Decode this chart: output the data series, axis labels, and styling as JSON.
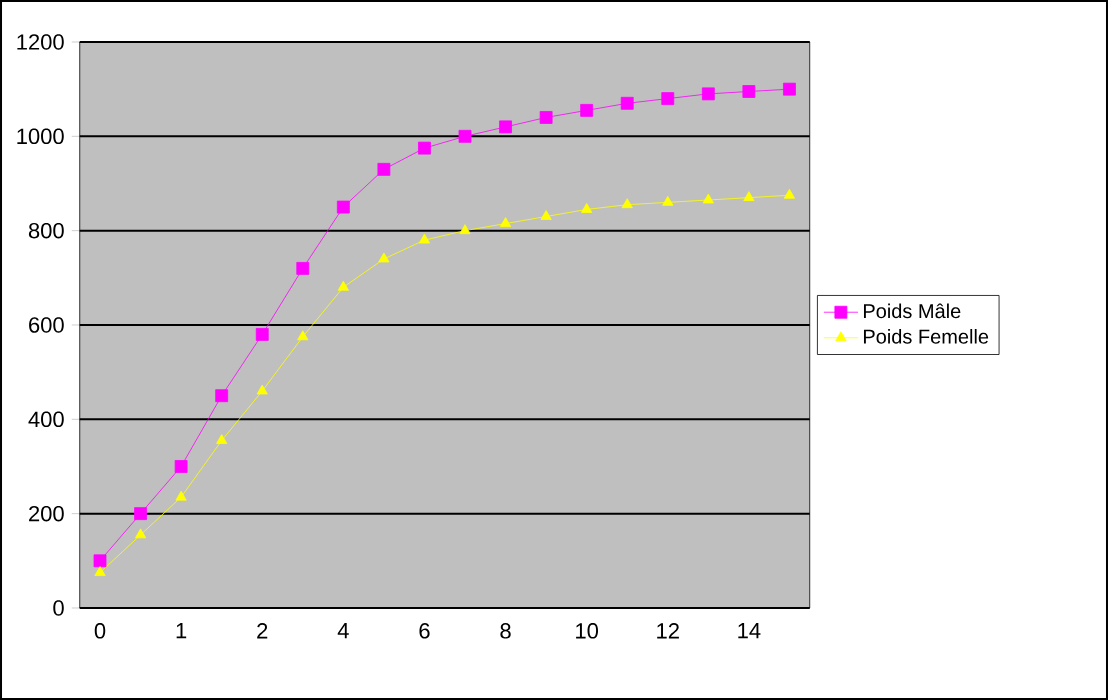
{
  "chart_data": {
    "type": "line",
    "categories": [
      "0",
      null,
      "1",
      null,
      "2",
      null,
      "4",
      null,
      "6",
      null,
      "8",
      null,
      "10",
      null,
      "12",
      null,
      "14",
      null
    ],
    "series": [
      {
        "name": "Poids Mâle",
        "color": "#ff00ff",
        "marker": "square",
        "values": [
          100,
          200,
          300,
          450,
          580,
          720,
          850,
          930,
          975,
          1000,
          1020,
          1040,
          1055,
          1070,
          1080,
          1090,
          1095,
          1100
        ]
      },
      {
        "name": "Poids Femelle",
        "color": "#ffff00",
        "marker": "triangle",
        "values": [
          75,
          155,
          235,
          355,
          460,
          575,
          680,
          740,
          780,
          800,
          815,
          830,
          845,
          855,
          860,
          865,
          870,
          875
        ]
      }
    ],
    "ylim": [
      0,
      1200
    ],
    "yticks": [
      0,
      200,
      400,
      600,
      800,
      1000,
      1200
    ],
    "grid": "y",
    "legend": "right",
    "line_style": "solid"
  }
}
